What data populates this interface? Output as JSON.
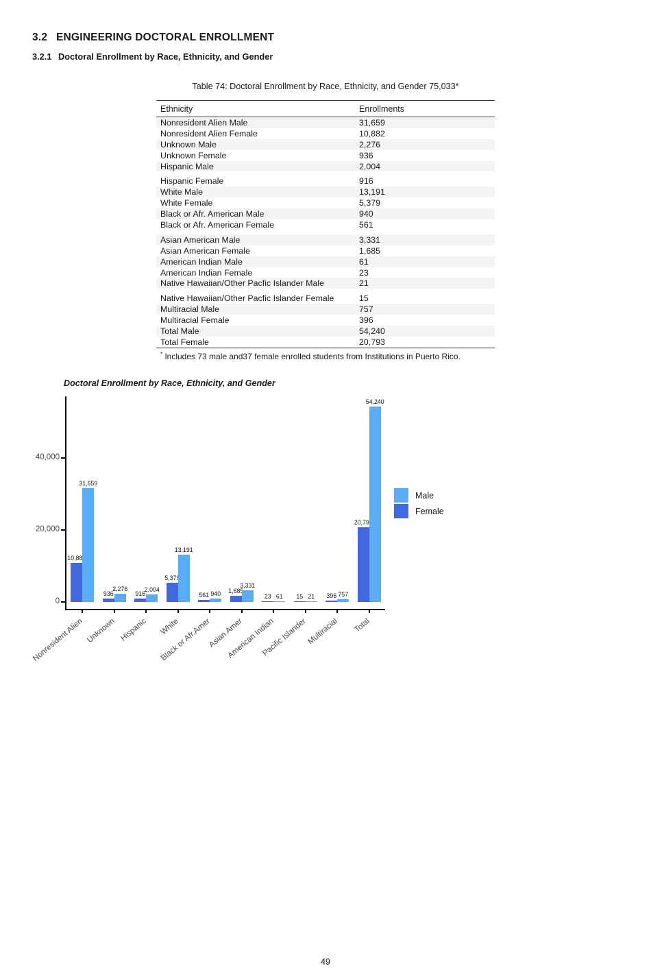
{
  "page": {
    "number": "49"
  },
  "headings": {
    "section": {
      "number": "3.2",
      "title": "ENGINEERING DOCTORAL ENROLLMENT"
    },
    "subsection": {
      "number": "3.2.1",
      "title": "Doctoral Enrollment by Race, Ethnicity, and Gender"
    }
  },
  "table": {
    "title": "Table 74: Doctoral Enrollment by Race, Ethnicity, and Gender 75,033*",
    "columns": [
      "Ethnicity",
      "Enrollments"
    ],
    "rows": [
      {
        "label": "Nonresident Alien Male",
        "value": "31,659"
      },
      {
        "label": "Nonresident Alien Female",
        "value": "10,882"
      },
      {
        "label": "Unknown Male",
        "value": "2,276"
      },
      {
        "label": "Unknown Female",
        "value": "936"
      },
      {
        "label": "Hispanic Male",
        "value": "2,004"
      },
      {
        "label": "Hispanic Female",
        "value": "916"
      },
      {
        "label": "White Male",
        "value": "13,191"
      },
      {
        "label": "White Female",
        "value": "5,379"
      },
      {
        "label": "Black or Afr. American Male",
        "value": "940"
      },
      {
        "label": "Black or Afr. American Female",
        "value": "561"
      },
      {
        "label": "Asian American Male",
        "value": "3,331"
      },
      {
        "label": "Asian American Female",
        "value": "1,685"
      },
      {
        "label": "American Indian Male",
        "value": "61"
      },
      {
        "label": "American Indian Female",
        "value": "23"
      },
      {
        "label": "Native Hawaiian/Other Pacfic Islander Male",
        "value": "21"
      },
      {
        "label": "Native Hawaiian/Other Pacfic Islander Female",
        "value": "15"
      },
      {
        "label": "Multiracial Male",
        "value": "757"
      },
      {
        "label": "Multiracial Female",
        "value": "396"
      },
      {
        "label": "Total Male",
        "value": "54,240"
      },
      {
        "label": "Total Female",
        "value": "20,793"
      }
    ],
    "footnote_marker": "*",
    "footnote_text": "Includes 73 male and37 female enrolled students from Institutions in Puerto Rico."
  },
  "chart_data": {
    "type": "bar",
    "title": "Doctoral Enrollment by Race, Ethnicity, and Gender",
    "categories": [
      "Nonresident Alien",
      "Unknown",
      "Hispanic",
      "White",
      "Black or Afr.Amer",
      "Asian Amer",
      "American Indian",
      "Pacific Islander",
      "Multiracial",
      "Total"
    ],
    "series": [
      {
        "name": "Female",
        "color": "#4168DF",
        "values": [
          10882,
          936,
          916,
          5379,
          561,
          1685,
          23,
          15,
          396,
          20793
        ],
        "labels": [
          "10,882",
          "936",
          "916",
          "5,379",
          "561",
          "1,685",
          "23",
          "15",
          "396",
          "20,793"
        ]
      },
      {
        "name": "Male",
        "color": "#5AACF5",
        "values": [
          31659,
          2276,
          2004,
          13191,
          940,
          3331,
          61,
          21,
          757,
          54240
        ],
        "labels": [
          "31,659",
          "2,276",
          "2,004",
          "13,191",
          "940",
          "3,331",
          "61",
          "21",
          "757",
          "54,240"
        ]
      }
    ],
    "xlabel": "",
    "ylabel": "",
    "ylim": [
      0,
      56000
    ],
    "yticks": [
      {
        "value": 0,
        "label": "0"
      },
      {
        "value": 20000,
        "label": "20,000"
      },
      {
        "value": 40000,
        "label": "40,000"
      }
    ],
    "grid": false,
    "legend_position": "right"
  }
}
